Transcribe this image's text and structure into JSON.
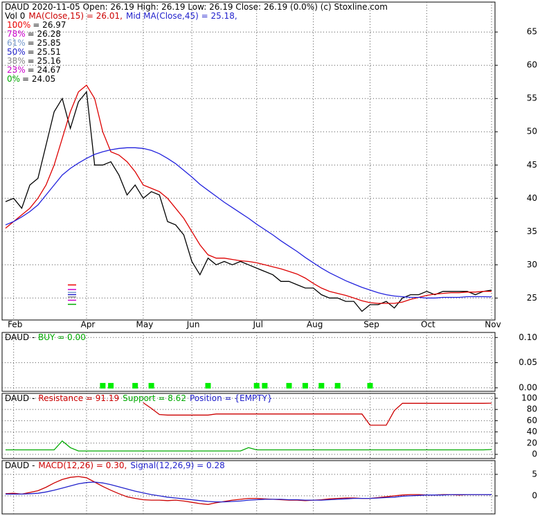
{
  "chart_data": [
    {
      "type": "line",
      "title_lines": [
        [
          {
            "text": "DAUD  2020-11-05 Open: 26.19  High: 26.19  Low: 26.19  Close: 26.19 (0.0%)  (c) Stoxline.com",
            "color": "#000000"
          }
        ],
        [
          {
            "text": "Vol 0",
            "color": "#000000"
          },
          {
            "text": "MA(Close,15) = 26.01,",
            "color": "#cc0000"
          },
          {
            "text": "Mid MA(Close,45) = 25.18,",
            "color": "#2222cc"
          }
        ]
      ],
      "fib_levels": [
        {
          "label": "100%",
          "value": 26.97,
          "value_label": "= 26.97",
          "color": "#ee0000"
        },
        {
          "label": "78%",
          "value": 26.28,
          "value_label": "= 26.28",
          "color": "#cc00cc"
        },
        {
          "label": "61%",
          "value": 25.85,
          "value_label": "= 25.85",
          "color": "#7799cc"
        },
        {
          "label": "50%",
          "value": 25.51,
          "value_label": "= 25.51",
          "color": "#2222cc"
        },
        {
          "label": "38%",
          "value": 25.16,
          "value_label": "= 25.16",
          "color": "#888888"
        },
        {
          "label": "23%",
          "value": 24.67,
          "value_label": "= 24.67",
          "color": "#cc00cc"
        },
        {
          "label": "0%",
          "value": 24.05,
          "value_label": "= 24.05",
          "color": "#00aa00"
        }
      ],
      "categories": [
        null,
        "Feb",
        null,
        null,
        null,
        null,
        null,
        null,
        null,
        null,
        "Apr",
        null,
        null,
        null,
        null,
        null,
        null,
        "May",
        null,
        null,
        null,
        null,
        null,
        "Jun",
        null,
        null,
        null,
        null,
        null,
        null,
        null,
        "Jul",
        null,
        null,
        null,
        null,
        null,
        null,
        "Aug",
        null,
        null,
        null,
        null,
        null,
        null,
        "Sep",
        null,
        null,
        null,
        null,
        null,
        null,
        "Oct",
        null,
        null,
        null,
        null,
        null,
        null,
        null,
        "Nov"
      ],
      "series": [
        {
          "color": "#000000",
          "values": [
            39.5,
            40,
            38.5,
            42,
            43,
            48,
            53,
            55,
            50.5,
            54.5,
            56,
            45,
            45,
            45.5,
            43.5,
            40.5,
            42,
            40,
            41,
            40.5,
            36.5,
            36,
            34.5,
            30.5,
            28.5,
            31,
            30,
            30.5,
            30,
            30.5,
            30,
            29.5,
            29,
            28.5,
            27.5,
            27.5,
            27,
            26.5,
            26.5,
            25.5,
            25,
            25,
            24.5,
            24.5,
            23,
            24,
            24,
            24.5,
            23.5,
            25,
            25.5,
            25.5,
            26,
            25.5,
            26,
            26,
            26,
            26,
            25.5,
            26,
            26.19
          ]
        },
        {
          "color": "#dd0000",
          "values": [
            35.5,
            36.5,
            37.5,
            38.5,
            40,
            42,
            45,
            49,
            53,
            56,
            57,
            55,
            50,
            47,
            46.5,
            45.5,
            44,
            42,
            41.5,
            41,
            40,
            38.5,
            37,
            35,
            33,
            31.5,
            31,
            31,
            30.8,
            30.6,
            30.5,
            30.3,
            30,
            29.7,
            29.4,
            29,
            28.6,
            28,
            27.2,
            26.5,
            26,
            25.7,
            25.4,
            25,
            24.6,
            24.3,
            24.2,
            24.2,
            24.2,
            24.4,
            24.8,
            25.1,
            25.4,
            25.6,
            25.7,
            25.8,
            25.8,
            25.9,
            25.9,
            26,
            26.01
          ]
        },
        {
          "color": "#2222dd",
          "values": [
            36,
            36.5,
            37.2,
            38,
            39,
            40.5,
            42,
            43.5,
            44.5,
            45.3,
            46,
            46.6,
            47,
            47.3,
            47.5,
            47.6,
            47.6,
            47.5,
            47.2,
            46.7,
            46,
            45.2,
            44.2,
            43.2,
            42.1,
            41.2,
            40.3,
            39.4,
            38.6,
            37.8,
            37,
            36.1,
            35.3,
            34.5,
            33.6,
            32.8,
            32,
            31.1,
            30.3,
            29.5,
            28.8,
            28.2,
            27.6,
            27.1,
            26.6,
            26.2,
            25.8,
            25.5,
            25.3,
            25.2,
            25.1,
            25.1,
            25,
            25,
            25.1,
            25.1,
            25.1,
            25.2,
            25.2,
            25.2,
            25.18
          ]
        }
      ],
      "ylim": [
        21.7,
        69.5
      ],
      "yticks": [
        25,
        30,
        35,
        40,
        45,
        50,
        55,
        60,
        65
      ],
      "grid": true
    },
    {
      "type": "scatter",
      "title_lines": [
        [
          {
            "text": "DAUD -",
            "color": "#000000"
          },
          {
            "text": "BUY = 0.00",
            "color": "#00aa00"
          }
        ]
      ],
      "series": [
        {
          "color": "#00ee00",
          "values": [
            null,
            null,
            null,
            null,
            null,
            null,
            null,
            null,
            null,
            null,
            null,
            null,
            0,
            0,
            null,
            null,
            0,
            null,
            0,
            null,
            null,
            null,
            null,
            null,
            null,
            0,
            null,
            null,
            null,
            null,
            null,
            0,
            0,
            null,
            null,
            0,
            null,
            0,
            null,
            0,
            null,
            0,
            null,
            null,
            null,
            0,
            null,
            null,
            null,
            null,
            null,
            null,
            null,
            null,
            null,
            null,
            null,
            null,
            null,
            null,
            null
          ]
        }
      ],
      "ylim": [
        -0.007,
        0.11
      ],
      "yticks": [
        {
          "value": 0,
          "label": "0.00"
        },
        {
          "value": 0.05,
          "label": "0.05"
        },
        {
          "value": 0.1,
          "label": "0.10"
        }
      ],
      "grid": true
    },
    {
      "type": "line",
      "title_lines": [
        [
          {
            "text": "DAUD -",
            "color": "#000000"
          },
          {
            "text": "Resistance = 91.19",
            "color": "#cc0000"
          },
          {
            "text": "Support = 8.62",
            "color": "#00aa00"
          },
          {
            "text": "Position = {EMPTY}",
            "color": "#2222cc"
          }
        ]
      ],
      "series": [
        {
          "color": "#cc0000",
          "values": [
            null,
            null,
            null,
            null,
            null,
            null,
            null,
            null,
            null,
            null,
            null,
            null,
            null,
            null,
            null,
            null,
            null,
            92,
            82,
            71,
            70,
            70,
            70,
            70,
            70,
            70,
            72,
            72,
            72,
            72,
            72,
            72,
            72,
            72,
            72,
            72,
            72,
            72,
            72,
            72,
            72,
            72,
            72,
            72,
            72,
            52,
            52,
            52,
            78,
            91,
            91,
            91,
            91,
            91,
            91,
            91,
            91,
            91,
            91,
            91,
            91.19
          ]
        },
        {
          "color": "#00aa00",
          "values": [
            8,
            8,
            8,
            8,
            8,
            8,
            8,
            24,
            12,
            6,
            6,
            6,
            6,
            6,
            6,
            6,
            6,
            6,
            6,
            6,
            6,
            6,
            6,
            6,
            6,
            6,
            6,
            6,
            6,
            6,
            12,
            8,
            8,
            8,
            8,
            8,
            8,
            8,
            8,
            8,
            8,
            8,
            8,
            8,
            8,
            8,
            8,
            8,
            8,
            8,
            8,
            8,
            8,
            8,
            8,
            8,
            8,
            8,
            8,
            8,
            8.62
          ]
        }
      ],
      "ylim": [
        -7.4,
        108.6
      ],
      "yticks": [
        0,
        20,
        40,
        60,
        80,
        100
      ],
      "grid": true
    },
    {
      "type": "line",
      "title_lines": [
        [
          {
            "text": "DAUD -",
            "color": "#000000"
          },
          {
            "text": "MACD(12,26) = 0.30,",
            "color": "#cc0000"
          },
          {
            "text": "Signal(12,26,9) = 0.28",
            "color": "#2222cc"
          }
        ]
      ],
      "series": [
        {
          "color": "#cc0000",
          "values": [
            0.5,
            0.6,
            0.4,
            0.8,
            1.2,
            2.0,
            3.0,
            3.8,
            4.3,
            4.5,
            4.2,
            3.2,
            2.2,
            1.3,
            0.5,
            -0.2,
            -0.6,
            -0.9,
            -1.0,
            -1.0,
            -1.1,
            -1.0,
            -1.2,
            -1.5,
            -1.8,
            -2.0,
            -1.6,
            -1.3,
            -1.0,
            -0.8,
            -0.6,
            -0.6,
            -0.7,
            -0.8,
            -0.9,
            -1.0,
            -1.0,
            -1.1,
            -1.0,
            -0.9,
            -0.7,
            -0.6,
            -0.5,
            -0.5,
            -0.6,
            -0.6,
            -0.4,
            -0.2,
            0.0,
            0.2,
            0.3,
            0.3,
            0.2,
            0.2,
            0.3,
            0.3,
            0.2,
            0.3,
            0.3,
            0.3,
            0.3
          ]
        },
        {
          "color": "#2222cc",
          "values": [
            0.4,
            0.4,
            0.4,
            0.5,
            0.6,
            0.9,
            1.3,
            1.8,
            2.3,
            2.8,
            3.1,
            3.2,
            3.0,
            2.6,
            2.1,
            1.6,
            1.1,
            0.7,
            0.3,
            0.0,
            -0.3,
            -0.5,
            -0.7,
            -0.9,
            -1.1,
            -1.3,
            -1.4,
            -1.4,
            -1.3,
            -1.2,
            -1.0,
            -0.9,
            -0.8,
            -0.8,
            -0.8,
            -0.9,
            -0.9,
            -1.0,
            -1.0,
            -1.0,
            -0.9,
            -0.8,
            -0.7,
            -0.6,
            -0.6,
            -0.6,
            -0.5,
            -0.4,
            -0.3,
            -0.1,
            0.0,
            0.1,
            0.2,
            0.2,
            0.2,
            0.3,
            0.3,
            0.3,
            0.3,
            0.3,
            0.28
          ]
        }
      ],
      "ylim": [
        -4.2,
        8.2
      ],
      "yticks": [
        0,
        5
      ],
      "grid": true
    }
  ]
}
